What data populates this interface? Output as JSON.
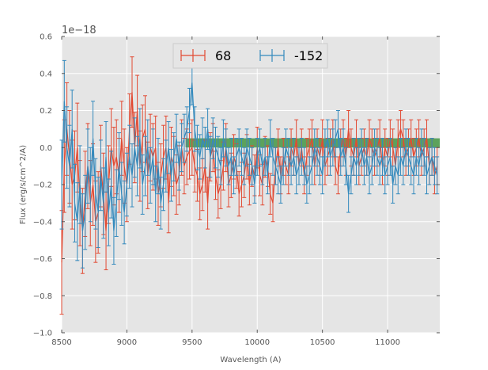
{
  "chart_data": {
    "type": "line",
    "title": "",
    "xlabel": "Wavelength (A)",
    "ylabel": "Flux (erg/s/cm^2/A)",
    "offset_text": "1e−18",
    "xlim": [
      8500,
      11400
    ],
    "ylim": [
      -1.0,
      0.6
    ],
    "xticks": [
      8500,
      9000,
      9500,
      10000,
      10500,
      11000
    ],
    "xtick_labels": [
      "8500",
      "9000",
      "9500",
      "10000",
      "10500",
      "11000"
    ],
    "yticks": [
      -1.0,
      -0.8,
      -0.6,
      -0.4,
      -0.2,
      0.0,
      0.2,
      0.4,
      0.6
    ],
    "ytick_labels": [
      "−1.0",
      "−0.8",
      "−0.6",
      "−0.4",
      "−0.2",
      "0.0",
      "0.2",
      "0.4",
      "0.6"
    ],
    "grid": true,
    "legend_position": "top-center",
    "colors": {
      "background": "#e5e5e5",
      "grid": "#ffffff",
      "band": "#2e8b2e"
    },
    "band": {
      "x": [
        9450,
        11400
      ],
      "y": [
        0.0,
        0.05
      ]
    },
    "series": [
      {
        "name": "68",
        "color": "#e24a33",
        "x": [
          8500,
          8520,
          8540,
          8560,
          8580,
          8600,
          8620,
          8640,
          8660,
          8680,
          8700,
          8720,
          8740,
          8760,
          8780,
          8800,
          8820,
          8840,
          8860,
          8880,
          8900,
          8920,
          8940,
          8960,
          8980,
          9000,
          9020,
          9040,
          9060,
          9080,
          9100,
          9120,
          9140,
          9160,
          9180,
          9200,
          9220,
          9240,
          9260,
          9280,
          9300,
          9320,
          9340,
          9360,
          9380,
          9400,
          9420,
          9440,
          9460,
          9480,
          9500,
          9520,
          9540,
          9560,
          9580,
          9600,
          9620,
          9640,
          9660,
          9680,
          9700,
          9720,
          9740,
          9760,
          9780,
          9800,
          9820,
          9840,
          9860,
          9880,
          9900,
          9920,
          9940,
          9960,
          9980,
          10000,
          10020,
          10040,
          10060,
          10080,
          10100,
          10120,
          10140,
          10160,
          10180,
          10200,
          10220,
          10240,
          10260,
          10280,
          10300,
          10320,
          10340,
          10360,
          10380,
          10400,
          10420,
          10440,
          10460,
          10480,
          10500,
          10520,
          10540,
          10560,
          10580,
          10600,
          10620,
          10640,
          10660,
          10680,
          10700,
          10720,
          10740,
          10760,
          10780,
          10800,
          10820,
          10840,
          10860,
          10880,
          10900,
          10920,
          10940,
          10960,
          10980,
          11000,
          11020,
          11040,
          11060,
          11080,
          11100,
          11120,
          11140,
          11160,
          11180,
          11200,
          11220,
          11240,
          11260,
          11280,
          11300,
          11320,
          11340,
          11360,
          11380
        ],
        "y": [
          -0.62,
          -0.1,
          0.1,
          -0.05,
          -0.2,
          -0.15,
          0.0,
          -0.3,
          -0.45,
          -0.25,
          -0.1,
          -0.3,
          -0.2,
          -0.4,
          -0.35,
          -0.1,
          -0.25,
          -0.45,
          -0.2,
          0.0,
          -0.1,
          -0.05,
          -0.15,
          0.05,
          -0.1,
          -0.2,
          0.1,
          0.3,
          0.0,
          0.2,
          -0.1,
          0.05,
          0.1,
          -0.15,
          0.0,
          -0.05,
          0.0,
          -0.25,
          -0.15,
          -0.05,
          0.0,
          -0.3,
          -0.05,
          -0.1,
          -0.2,
          -0.15,
          0.0,
          -0.1,
          -0.05,
          -0.02,
          0.0,
          -0.1,
          -0.15,
          -0.25,
          -0.2,
          -0.1,
          -0.3,
          -0.05,
          0.0,
          -0.15,
          -0.25,
          -0.2,
          -0.1,
          0.0,
          -0.2,
          -0.15,
          -0.05,
          -0.1,
          -0.25,
          -0.2,
          -0.15,
          -0.05,
          -0.2,
          -0.1,
          -0.15,
          0.0,
          -0.15,
          -0.2,
          -0.05,
          -0.1,
          -0.25,
          -0.3,
          -0.1,
          0.0,
          -0.15,
          -0.05,
          -0.1,
          -0.15,
          0.0,
          -0.05,
          0.05,
          -0.1,
          0.0,
          -0.15,
          -0.05,
          0.0,
          0.05,
          -0.1,
          0.0,
          -0.05,
          0.05,
          -0.1,
          -0.05,
          0.0,
          0.05,
          -0.1,
          -0.15,
          0.0,
          0.05,
          -0.05,
          0.1,
          0.0,
          -0.05,
          0.05,
          -0.1,
          -0.05,
          0.0,
          -0.05,
          0.05,
          0.0,
          -0.05,
          0.0,
          0.05,
          -0.1,
          0.0,
          -0.05,
          0.05,
          0.0,
          -0.1,
          0.05,
          0.1,
          0.05,
          -0.05,
          0.0,
          0.05,
          -0.05,
          0.0,
          0.05,
          -0.05,
          0.0,
          0.05,
          -0.1,
          -0.05,
          -0.15,
          -0.1
        ],
        "err": [
          0.28,
          0.25,
          0.25,
          0.25,
          0.24,
          0.24,
          0.24,
          0.23,
          0.23,
          0.23,
          0.23,
          0.23,
          0.22,
          0.22,
          0.22,
          0.22,
          0.22,
          0.21,
          0.21,
          0.21,
          0.21,
          0.2,
          0.2,
          0.2,
          0.2,
          0.2,
          0.19,
          0.19,
          0.19,
          0.19,
          0.19,
          0.18,
          0.18,
          0.18,
          0.18,
          0.18,
          0.17,
          0.17,
          0.17,
          0.17,
          0.17,
          0.16,
          0.16,
          0.16,
          0.16,
          0.16,
          0.15,
          0.15,
          0.15,
          0.15,
          0.15,
          0.14,
          0.14,
          0.14,
          0.14,
          0.14,
          0.14,
          0.13,
          0.13,
          0.13,
          0.13,
          0.13,
          0.13,
          0.13,
          0.12,
          0.12,
          0.12,
          0.12,
          0.12,
          0.12,
          0.12,
          0.12,
          0.11,
          0.11,
          0.11,
          0.11,
          0.11,
          0.11,
          0.11,
          0.11,
          0.11,
          0.1,
          0.1,
          0.1,
          0.1,
          0.1,
          0.1,
          0.1,
          0.1,
          0.1,
          0.1,
          0.1,
          0.1,
          0.1,
          0.1,
          0.1,
          0.1,
          0.1,
          0.1,
          0.1,
          0.1,
          0.1,
          0.1,
          0.1,
          0.1,
          0.1,
          0.1,
          0.1,
          0.1,
          0.1,
          0.1,
          0.1,
          0.1,
          0.1,
          0.1,
          0.1,
          0.1,
          0.1,
          0.1,
          0.1,
          0.1,
          0.1,
          0.1,
          0.1,
          0.1,
          0.1,
          0.1,
          0.1,
          0.1,
          0.1,
          0.1,
          0.1,
          0.1,
          0.1,
          0.1,
          0.1,
          0.1,
          0.1,
          0.1,
          0.1,
          0.1,
          0.1,
          0.1,
          0.1,
          0.1
        ]
      },
      {
        "name": "-152",
        "color": "#348abd",
        "x": [
          8500,
          8520,
          8540,
          8560,
          8580,
          8600,
          8620,
          8640,
          8660,
          8680,
          8700,
          8720,
          8740,
          8760,
          8780,
          8800,
          8820,
          8840,
          8860,
          8880,
          8900,
          8920,
          8940,
          8960,
          8980,
          9000,
          9020,
          9040,
          9060,
          9080,
          9100,
          9120,
          9140,
          9160,
          9180,
          9200,
          9220,
          9240,
          9260,
          9280,
          9300,
          9320,
          9340,
          9360,
          9380,
          9400,
          9420,
          9440,
          9460,
          9480,
          9500,
          9520,
          9540,
          9560,
          9580,
          9600,
          9620,
          9640,
          9660,
          9680,
          9700,
          9720,
          9740,
          9760,
          9780,
          9800,
          9820,
          9840,
          9860,
          9880,
          9900,
          9920,
          9940,
          9960,
          9980,
          10000,
          10020,
          10040,
          10060,
          10080,
          10100,
          10120,
          10140,
          10160,
          10180,
          10200,
          10220,
          10240,
          10260,
          10280,
          10300,
          10320,
          10340,
          10360,
          10380,
          10400,
          10420,
          10440,
          10460,
          10480,
          10500,
          10520,
          10540,
          10560,
          10580,
          10600,
          10620,
          10640,
          10660,
          10680,
          10700,
          10720,
          10740,
          10760,
          10780,
          10800,
          10820,
          10840,
          10860,
          10880,
          10900,
          10920,
          10940,
          10960,
          10980,
          11000,
          11020,
          11040,
          11060,
          11080,
          11100,
          11120,
          11140,
          11160,
          11180,
          11200,
          11220,
          11240,
          11260,
          11280,
          11300,
          11320,
          11340,
          11360,
          11380
        ],
        "y": [
          -0.2,
          0.25,
          0.0,
          -0.1,
          0.1,
          -0.3,
          -0.4,
          -0.2,
          -0.45,
          -0.35,
          -0.1,
          -0.2,
          0.05,
          -0.25,
          -0.35,
          -0.15,
          -0.3,
          -0.05,
          -0.35,
          -0.2,
          -0.45,
          -0.3,
          -0.1,
          -0.25,
          -0.35,
          -0.2,
          -0.05,
          -0.15,
          0.0,
          -0.1,
          0.05,
          -0.2,
          -0.1,
          0.0,
          -0.15,
          -0.05,
          -0.25,
          -0.1,
          -0.3,
          -0.2,
          -0.1,
          0.0,
          -0.15,
          -0.05,
          0.05,
          -0.1,
          0.0,
          0.05,
          0.1,
          0.2,
          0.35,
          0.1,
          0.0,
          -0.05,
          0.05,
          0.0,
          0.1,
          -0.05,
          0.05,
          0.0,
          -0.05,
          -0.1,
          0.05,
          0.0,
          -0.1,
          -0.05,
          -0.15,
          -0.05,
          0.0,
          -0.05,
          -0.1,
          0.0,
          -0.05,
          -0.1,
          -0.2,
          -0.05,
          0.0,
          -0.1,
          -0.05,
          -0.15,
          0.05,
          -0.05,
          -0.1,
          -0.15,
          -0.2,
          -0.1,
          0.0,
          -0.05,
          -0.1,
          -0.05,
          -0.15,
          -0.1,
          -0.05,
          -0.1,
          -0.2,
          -0.15,
          -0.1,
          0.0,
          -0.05,
          -0.1,
          -0.15,
          0.0,
          0.05,
          -0.05,
          0.0,
          0.05,
          0.1,
          -0.05,
          0.0,
          -0.1,
          -0.25,
          -0.15,
          -0.05,
          -0.1,
          -0.05,
          0.0,
          -0.1,
          -0.05,
          -0.15,
          -0.1,
          0.0,
          -0.05,
          -0.1,
          -0.05,
          -0.15,
          -0.1,
          -0.05,
          -0.2,
          -0.1,
          -0.15,
          -0.05,
          -0.1,
          0.0,
          -0.05,
          -0.1,
          -0.15,
          -0.05,
          -0.1,
          0.0,
          -0.05,
          -0.15,
          -0.1,
          -0.05,
          -0.1,
          -0.15
        ],
        "err": [
          0.24,
          0.22,
          0.22,
          0.22,
          0.21,
          0.21,
          0.21,
          0.21,
          0.2,
          0.2,
          0.2,
          0.2,
          0.2,
          0.19,
          0.19,
          0.19,
          0.19,
          0.19,
          0.18,
          0.18,
          0.18,
          0.18,
          0.18,
          0.17,
          0.17,
          0.17,
          0.17,
          0.17,
          0.16,
          0.16,
          0.16,
          0.16,
          0.16,
          0.15,
          0.15,
          0.15,
          0.15,
          0.15,
          0.14,
          0.14,
          0.14,
          0.14,
          0.14,
          0.13,
          0.13,
          0.13,
          0.13,
          0.13,
          0.12,
          0.12,
          0.12,
          0.12,
          0.12,
          0.12,
          0.11,
          0.11,
          0.11,
          0.11,
          0.11,
          0.11,
          0.11,
          0.1,
          0.1,
          0.1,
          0.1,
          0.1,
          0.1,
          0.1,
          0.1,
          0.1,
          0.1,
          0.1,
          0.1,
          0.1,
          0.1,
          0.1,
          0.1,
          0.1,
          0.1,
          0.1,
          0.1,
          0.1,
          0.1,
          0.1,
          0.1,
          0.1,
          0.1,
          0.1,
          0.1,
          0.1,
          0.1,
          0.1,
          0.1,
          0.1,
          0.1,
          0.1,
          0.1,
          0.1,
          0.1,
          0.1,
          0.1,
          0.1,
          0.1,
          0.1,
          0.1,
          0.1,
          0.1,
          0.1,
          0.1,
          0.1,
          0.1,
          0.1,
          0.1,
          0.1,
          0.1,
          0.1,
          0.1,
          0.1,
          0.1,
          0.1,
          0.1,
          0.1,
          0.1,
          0.1,
          0.1,
          0.1,
          0.1,
          0.1,
          0.1,
          0.1,
          0.1,
          0.1,
          0.1,
          0.1,
          0.1,
          0.1,
          0.1,
          0.1,
          0.1,
          0.1,
          0.1,
          0.1,
          0.1,
          0.1,
          0.1
        ]
      }
    ]
  }
}
